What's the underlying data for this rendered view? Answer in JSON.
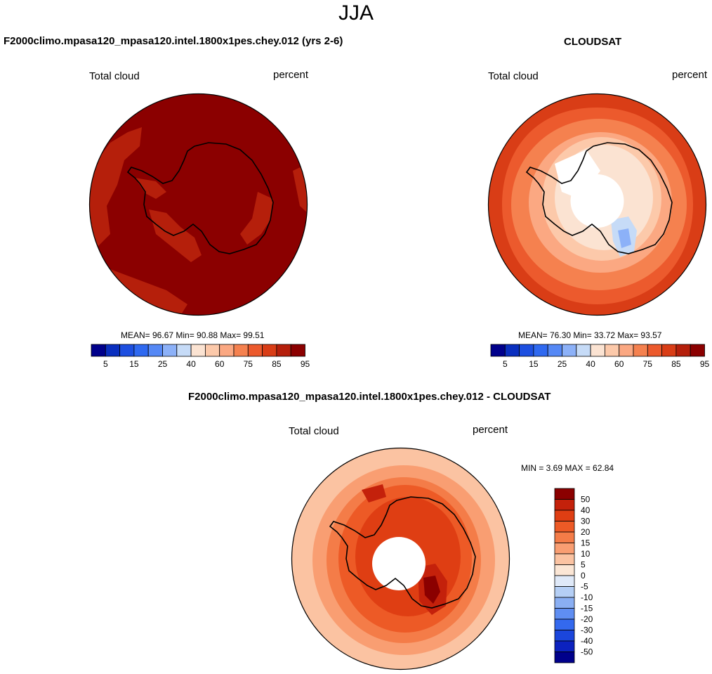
{
  "figure": {
    "title": "JJA"
  },
  "panels": [
    {
      "title": "F2000climo.mpasa120_mpasa120.intel.1800x1pes.chey.012 (yrs 2-6)",
      "left_label": "Total cloud",
      "right_label": "percent",
      "stats": "MEAN=  96.67   Min=  90.88   Max=  99.51"
    },
    {
      "title": "CLOUDSAT",
      "left_label": "Total cloud",
      "right_label": "percent",
      "stats": "MEAN=  76.30   Min=  33.72   Max=  93.57"
    },
    {
      "title": "F2000climo.mpasa120_mpasa120.intel.1800x1pes.chey.012 - CLOUDSAT",
      "left_label": "Total cloud",
      "right_label": "percent",
      "stats": "MIN =   3.69  MAX =  62.84"
    }
  ],
  "colorbar_abs": {
    "colors": [
      "#00008b",
      "#0a2fbf",
      "#1d4fe0",
      "#2f69f0",
      "#5588f5",
      "#8cb1f8",
      "#c6dbf7",
      "#fbe3d2",
      "#fcc9aa",
      "#fba882",
      "#f5814f",
      "#ec5a2d",
      "#d93d16",
      "#b51f0b",
      "#8b0000"
    ],
    "labels": [
      "5",
      "15",
      "25",
      "40",
      "60",
      "75",
      "85",
      "95"
    ]
  },
  "colorbar_diff": {
    "colors": [
      "#8b0000",
      "#c4210b",
      "#df3e13",
      "#ed5a26",
      "#f47c48",
      "#f99e72",
      "#fbc3a2",
      "#fbe6d5",
      "#dfe9f8",
      "#b5cff5",
      "#8aaff3",
      "#5f8ef2",
      "#3469ee",
      "#1b46dc",
      "#0c22bf",
      "#00008b"
    ],
    "labels": [
      "50",
      "40",
      "30",
      "20",
      "15",
      "10",
      "5",
      "0",
      "-5",
      "-10",
      "-15",
      "-20",
      "-30",
      "-40",
      "-50"
    ]
  },
  "chart_data": {
    "type": "heatmap",
    "season": "JJA",
    "variable": "Total cloud",
    "units": "percent",
    "projection": "south polar stereographic",
    "panels": [
      {
        "name": "F2000climo.mpasa120_mpasa120.intel.1800x1pes.chey.012 (yrs 2-6)",
        "mean": 96.67,
        "min": 90.88,
        "max": 99.51
      },
      {
        "name": "CLOUDSAT",
        "mean": 76.3,
        "min": 33.72,
        "max": 93.57
      },
      {
        "name": "F2000climo.mpasa120_mpasa120.intel.1800x1pes.chey.012 - CLOUDSAT",
        "min": 3.69,
        "max": 62.84
      }
    ],
    "abs_contour_levels": [
      5,
      10,
      15,
      20,
      25,
      30,
      40,
      50,
      60,
      70,
      75,
      80,
      85,
      90,
      95
    ],
    "diff_contour_levels": [
      -50,
      -40,
      -30,
      -20,
      -15,
      -10,
      -5,
      0,
      5,
      10,
      15,
      20,
      30,
      40,
      50
    ]
  }
}
